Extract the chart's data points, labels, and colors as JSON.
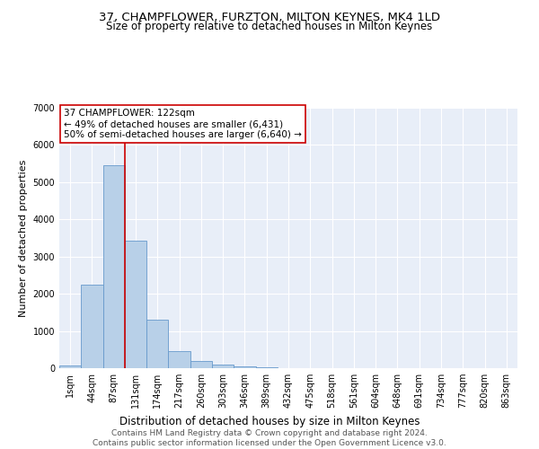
{
  "title": "37, CHAMPFLOWER, FURZTON, MILTON KEYNES, MK4 1LD",
  "subtitle": "Size of property relative to detached houses in Milton Keynes",
  "xlabel": "Distribution of detached houses by size in Milton Keynes",
  "ylabel": "Number of detached properties",
  "bin_labels": [
    "1sqm",
    "44sqm",
    "87sqm",
    "131sqm",
    "174sqm",
    "217sqm",
    "260sqm",
    "303sqm",
    "346sqm",
    "389sqm",
    "432sqm",
    "475sqm",
    "518sqm",
    "561sqm",
    "604sqm",
    "648sqm",
    "691sqm",
    "734sqm",
    "777sqm",
    "820sqm",
    "863sqm"
  ],
  "bar_values": [
    75,
    2250,
    5450,
    3430,
    1310,
    470,
    185,
    100,
    60,
    30,
    0,
    0,
    0,
    0,
    0,
    0,
    0,
    0,
    0,
    0,
    0
  ],
  "bar_color": "#b8d0e8",
  "bar_edge_color": "#6699cc",
  "vline_x": 2.5,
  "vline_color": "#cc0000",
  "annotation_text": "37 CHAMPFLOWER: 122sqm\n← 49% of detached houses are smaller (6,431)\n50% of semi-detached houses are larger (6,640) →",
  "annotation_box_color": "#ffffff",
  "annotation_box_edge": "#cc0000",
  "ylim": [
    0,
    7000
  ],
  "yticks": [
    0,
    1000,
    2000,
    3000,
    4000,
    5000,
    6000,
    7000
  ],
  "bg_color": "#e8eef8",
  "footer": "Contains HM Land Registry data © Crown copyright and database right 2024.\nContains public sector information licensed under the Open Government Licence v3.0.",
  "title_fontsize": 9.5,
  "subtitle_fontsize": 8.5,
  "xlabel_fontsize": 8.5,
  "ylabel_fontsize": 8,
  "tick_fontsize": 7,
  "ann_fontsize": 7.5,
  "footer_fontsize": 6.5
}
